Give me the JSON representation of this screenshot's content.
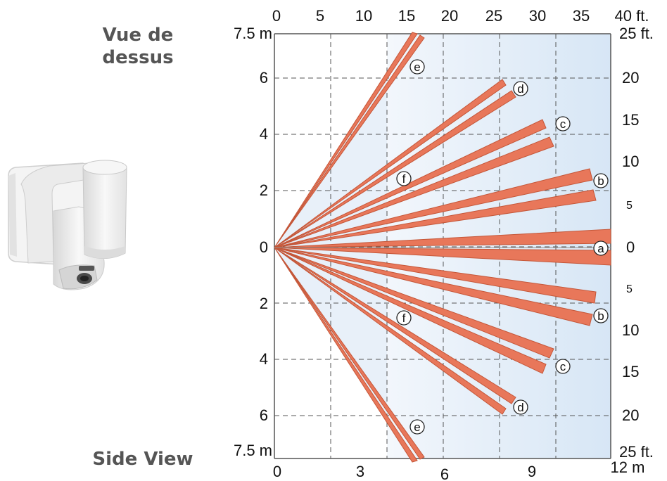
{
  "header": {
    "title_fr_line1": "Vue de",
    "title_fr_line2": "dessus"
  },
  "footer": {
    "title_en": "Side View"
  },
  "axes": {
    "top_ticks": [
      "0",
      "5",
      "10",
      "15",
      "20",
      "25",
      "30",
      "35",
      "40 ft."
    ],
    "bottom_ticks": [
      "0",
      "3",
      "6",
      "9",
      "12 m"
    ],
    "left_top_label": "7.5 m",
    "left_bottom_label": "7.5 m",
    "left_ticks_upper": [
      "6",
      "4",
      "2",
      "0"
    ],
    "left_ticks_lower": [
      "2",
      "4",
      "6"
    ],
    "right_top_label": "25 ft.",
    "right_bottom_label": "25 ft.",
    "right_ticks_upper": [
      "20",
      "15",
      "10",
      "5",
      "0"
    ],
    "right_ticks_lower": [
      "5",
      "10",
      "15",
      "20"
    ]
  },
  "zones": {
    "a": "a",
    "b": "b",
    "c": "c",
    "d": "d",
    "e": "e",
    "f": "f"
  },
  "colors": {
    "beam": "#e8775a",
    "beam_stroke": "#c95a3d",
    "coverage_bg": "#dce9f6",
    "grid": "#555555"
  },
  "device": {
    "icon": "camera-detector-icon"
  }
}
